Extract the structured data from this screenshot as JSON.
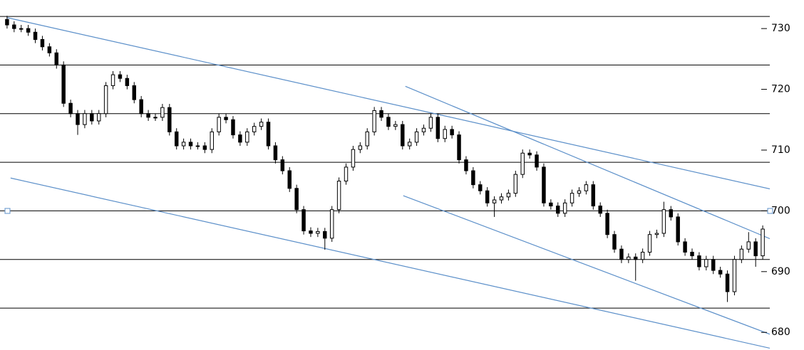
{
  "chart_data": {
    "type": "candlestick",
    "open": [
      731.5,
      730.6,
      730,
      730,
      729.4,
      728.2,
      727,
      726,
      724,
      717.7,
      716,
      714.2,
      716,
      714.8,
      716,
      720.6,
      722.4,
      721.8,
      720.6,
      718.3,
      716,
      715.4,
      715.4,
      717,
      713,
      710.7,
      711.3,
      710.7,
      710.7,
      710.1,
      713,
      715.4,
      715,
      712.5,
      711.3,
      713,
      713.9,
      714.6,
      710.7,
      708.4,
      706.6,
      703.7,
      700.2,
      696.7,
      696.3,
      696.6,
      695.5,
      700.2,
      704.9,
      707.2,
      710.1,
      710.7,
      713,
      716.5,
      715.4,
      713.9,
      714.2,
      710.7,
      711.3,
      713,
      713.6,
      715.4,
      711.9,
      713.4,
      712.5,
      708.4,
      706.6,
      704.3,
      703.3,
      701.3,
      701.8,
      702.3,
      702.9,
      706,
      709.5,
      709.2,
      707.2,
      701.3,
      700.8,
      699.6,
      701.3,
      702.9,
      703.3,
      704.3,
      700.8,
      699.6,
      696.1,
      693.7,
      692,
      692.4,
      692,
      693.2,
      696.1,
      696.3,
      700.2,
      699,
      694.9,
      693.2,
      692.6,
      690.8,
      692,
      690.2,
      689.6,
      686.7,
      692,
      693.7,
      694.9,
      692.6
    ],
    "high": [
      732.1,
      731.2,
      730.6,
      730.6,
      730,
      728.8,
      727.6,
      726.6,
      724.6,
      718.3,
      716.6,
      716.6,
      716.6,
      716.6,
      721.2,
      723,
      723,
      722.4,
      721.2,
      718.9,
      716.6,
      716,
      717.6,
      717.6,
      713.6,
      711.9,
      711.9,
      711.3,
      711.3,
      713.6,
      716,
      716,
      715.6,
      713.1,
      713.6,
      714.5,
      715.2,
      715.2,
      711.3,
      709,
      707.2,
      704.3,
      700.8,
      697.3,
      697.2,
      697.2,
      700.8,
      705.5,
      707.8,
      710.7,
      711.3,
      713.6,
      717.1,
      717.1,
      716,
      714.8,
      714.8,
      711.9,
      713.6,
      714.2,
      716,
      716,
      714,
      714,
      713.1,
      709,
      707.2,
      704.9,
      703.9,
      702.4,
      702.9,
      703.5,
      706.6,
      710.1,
      710.1,
      709.8,
      707.8,
      701.9,
      701.4,
      701.9,
      703.5,
      703.9,
      704.9,
      704.9,
      701.4,
      700.2,
      696.7,
      694.3,
      693,
      693,
      693.8,
      696.7,
      696.9,
      701.5,
      700.8,
      699.6,
      695.5,
      693.8,
      693.2,
      692.6,
      692.6,
      690.8,
      690.2,
      692.6,
      694.3,
      696.5,
      695.5,
      697.6
    ],
    "low": [
      730,
      729.4,
      729.4,
      728.8,
      727.6,
      726.4,
      725.4,
      723.4,
      717.1,
      715.4,
      712.5,
      713.6,
      714.2,
      714.2,
      715.4,
      720,
      721.2,
      720,
      717.7,
      715.4,
      714.8,
      714.8,
      714.8,
      712.4,
      710.1,
      710.1,
      710.1,
      710.1,
      709.5,
      709.5,
      712.4,
      714.4,
      711.9,
      710.7,
      710.7,
      712.4,
      713.3,
      710.1,
      707.8,
      706,
      703.1,
      699.6,
      696.1,
      695.7,
      695.7,
      693.6,
      694.9,
      699.6,
      704.3,
      706.6,
      709.5,
      710.1,
      712.4,
      714.8,
      713.3,
      713.3,
      710.1,
      710.1,
      710.7,
      712.4,
      713,
      711.3,
      711.3,
      711.9,
      707.8,
      706,
      703.7,
      702.7,
      700.7,
      699,
      701.2,
      701.7,
      702.3,
      705.4,
      708.6,
      706.6,
      700.7,
      700.2,
      699,
      699,
      700.7,
      702.3,
      702.7,
      700.2,
      699,
      695.5,
      693.1,
      691.4,
      691.4,
      688.5,
      691.4,
      692.6,
      695.5,
      695.7,
      698.4,
      694.3,
      692.6,
      692,
      690.2,
      690.2,
      689.6,
      689,
      685,
      686.1,
      691.4,
      693.1,
      690.8,
      692
    ],
    "close": [
      730.6,
      730,
      730,
      729.4,
      728.2,
      727,
      726,
      724,
      717.7,
      716,
      714.2,
      716,
      714.8,
      716,
      720.6,
      722.4,
      721.8,
      720.6,
      718.3,
      716,
      715.4,
      715.4,
      717,
      713,
      710.7,
      711.3,
      710.7,
      710.7,
      710.1,
      713,
      715.4,
      715,
      712.5,
      711.3,
      713,
      713.9,
      714.6,
      710.7,
      708.4,
      706.6,
      703.7,
      700.2,
      696.7,
      696.3,
      696.6,
      695.5,
      700.2,
      704.9,
      707.2,
      710.1,
      710.7,
      713,
      716.5,
      715.4,
      713.9,
      714.2,
      710.7,
      711.3,
      713,
      713.6,
      715.4,
      711.9,
      713.4,
      712.5,
      708.4,
      706.6,
      704.3,
      703.3,
      701.3,
      701.8,
      702.3,
      702.9,
      706,
      709.5,
      709.2,
      707.2,
      701.3,
      700.8,
      699.6,
      701.3,
      702.9,
      703.3,
      704.3,
      700.8,
      699.6,
      696.1,
      693.7,
      692,
      692.4,
      692,
      693.2,
      696.1,
      696.3,
      700.2,
      699,
      694.9,
      693.2,
      692.6,
      690.8,
      692,
      690.2,
      689.6,
      686.7,
      692,
      693.7,
      694.9,
      692.6,
      697
    ],
    "xlim": [
      -1,
      108
    ],
    "ylim": [
      677.1,
      734.7
    ],
    "yticks": [
      680,
      690,
      700,
      710,
      720,
      730
    ],
    "gridlines": [
      684,
      692,
      700,
      708,
      716,
      724,
      732
    ],
    "trendline_color": "#5b8fc9",
    "trendlines": [
      {
        "x": [
          0,
          109.2
        ],
        "y": [
          731.8,
          703.3
        ]
      },
      {
        "x": [
          56.4,
          109.7
        ],
        "y": [
          720.5,
          694.6
        ]
      },
      {
        "x": [
          0.5,
          108
        ],
        "y": [
          705.4,
          677.4
        ]
      },
      {
        "x": [
          56.1,
          108
        ],
        "y": [
          702.5,
          679.7
        ]
      }
    ]
  }
}
